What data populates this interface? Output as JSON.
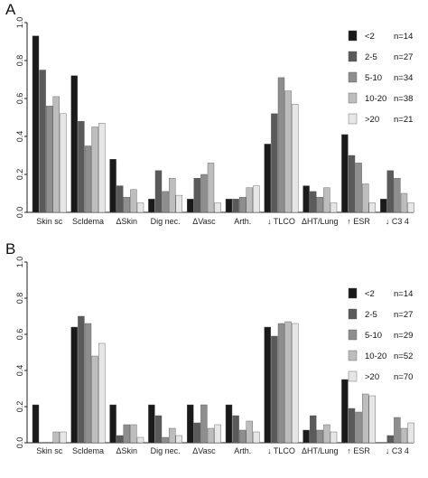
{
  "series_colors": [
    "#1a1a1a",
    "#5a5a5a",
    "#8e8e8e",
    "#bdbdbd",
    "#e6e6e6"
  ],
  "chart_data": [
    {
      "type": "bar",
      "panel": "A",
      "ylim": [
        0,
        1.0
      ],
      "yticks": [
        "0.0",
        "0.2",
        "0.4",
        "0.6",
        "0.8",
        "1.0"
      ],
      "categories": [
        "Skin sc",
        "Scldema",
        "ΔSkin",
        "Dig nec.",
        "ΔVasc",
        "Arth.",
        "↓ TLCO",
        "ΔHT/Lung",
        "↑ ESR",
        "↓ C3 4"
      ],
      "series": [
        {
          "name": "<2",
          "n": "n=14",
          "values": [
            0.93,
            0.72,
            0.28,
            0.07,
            0.07,
            0.07,
            0.36,
            0.14,
            0.41,
            0.07
          ]
        },
        {
          "name": "2-5",
          "n": "n=27",
          "values": [
            0.75,
            0.48,
            0.14,
            0.22,
            0.18,
            0.07,
            0.52,
            0.11,
            0.3,
            0.22
          ]
        },
        {
          "name": "5-10",
          "n": "n=34",
          "values": [
            0.56,
            0.35,
            0.08,
            0.11,
            0.2,
            0.08,
            0.71,
            0.08,
            0.26,
            0.18
          ]
        },
        {
          "name": "10-20",
          "n": "n=38",
          "values": [
            0.61,
            0.45,
            0.12,
            0.18,
            0.26,
            0.13,
            0.64,
            0.13,
            0.15,
            0.1
          ]
        },
        {
          "name": ">20",
          "n": "n=21",
          "values": [
            0.52,
            0.47,
            0.05,
            0.09,
            0.05,
            0.14,
            0.57,
            0.05,
            0.05,
            0.05
          ]
        }
      ],
      "legend_position": "top-right",
      "grid": false
    },
    {
      "type": "bar",
      "panel": "B",
      "ylim": [
        0,
        1.0
      ],
      "yticks": [
        "0.0",
        "0.2",
        "0.4",
        "0.6",
        "0.8",
        "1.0"
      ],
      "categories": [
        "Skin sc",
        "Scldema",
        "ΔSkin",
        "Dig nec.",
        "ΔVasc",
        "Arth.",
        "↓ TLCO",
        "ΔHT/Lung",
        "↑ ESR",
        "↓ C3 4"
      ],
      "series": [
        {
          "name": "<2",
          "n": "n=14",
          "values": [
            0.21,
            0.64,
            0.21,
            0.21,
            0.21,
            0.21,
            0.64,
            0.07,
            0.35,
            0.0
          ]
        },
        {
          "name": "2-5",
          "n": "n=27",
          "values": [
            0.0,
            0.7,
            0.04,
            0.15,
            0.11,
            0.15,
            0.59,
            0.15,
            0.19,
            0.04
          ]
        },
        {
          "name": "5-10",
          "n": "n=29",
          "values": [
            0.0,
            0.66,
            0.1,
            0.03,
            0.21,
            0.07,
            0.66,
            0.07,
            0.17,
            0.14
          ]
        },
        {
          "name": "10-20",
          "n": "n=52",
          "values": [
            0.06,
            0.48,
            0.1,
            0.08,
            0.08,
            0.12,
            0.67,
            0.1,
            0.27,
            0.08
          ]
        },
        {
          "name": ">20",
          "n": "n=70",
          "values": [
            0.06,
            0.55,
            0.03,
            0.04,
            0.1,
            0.06,
            0.66,
            0.06,
            0.26,
            0.11
          ]
        }
      ],
      "legend_position": "top-right",
      "grid": false
    }
  ]
}
